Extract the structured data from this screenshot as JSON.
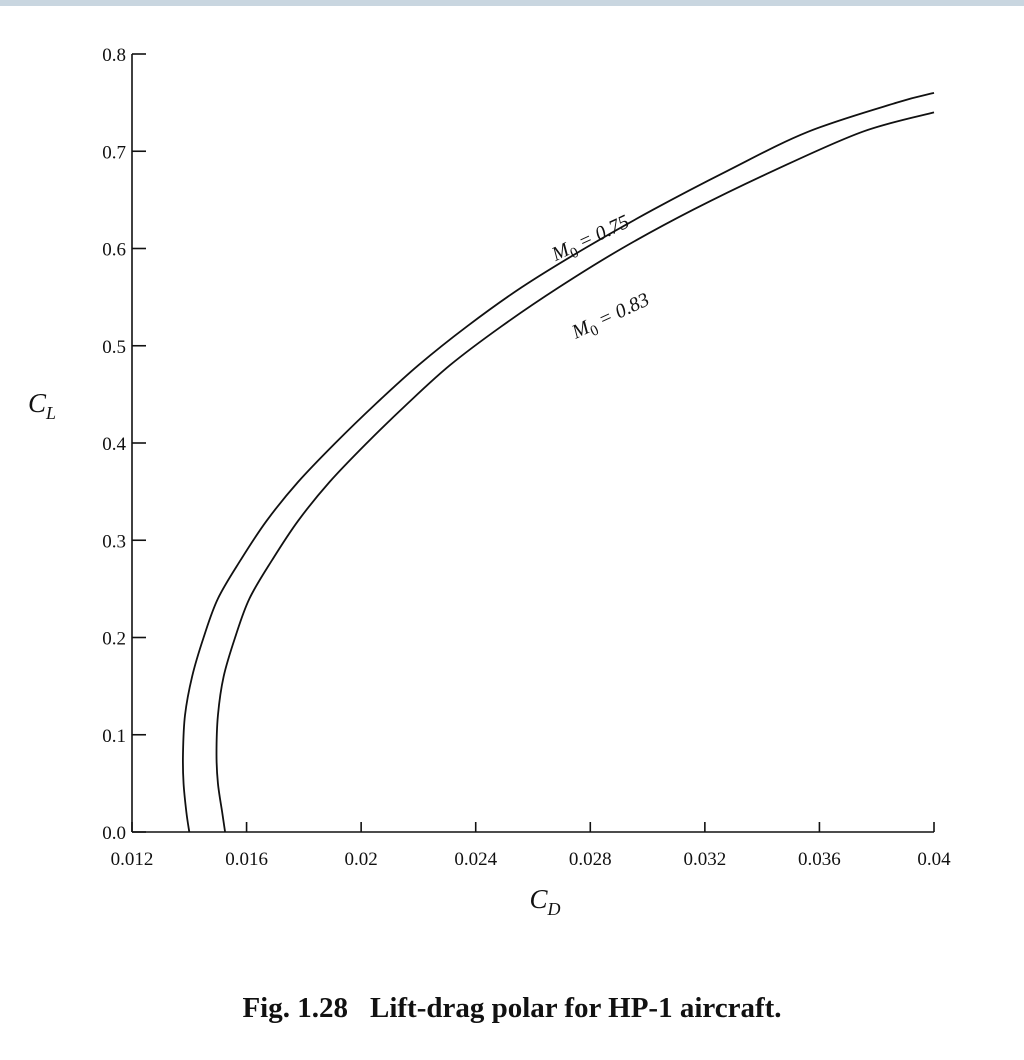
{
  "caption": {
    "figure_number": "Fig. 1.28",
    "text": "Lift-drag polar for HP-1 aircraft."
  },
  "chart_data": {
    "type": "line",
    "xlabel": {
      "main": "C",
      "sub": "D"
    },
    "ylabel": {
      "main": "C",
      "sub": "L"
    },
    "xlim": [
      0.012,
      0.04
    ],
    "ylim": [
      0.0,
      0.8
    ],
    "grid": false,
    "x_ticks": [
      {
        "value": 0.012,
        "label": "0.012"
      },
      {
        "value": 0.016,
        "label": "0.016"
      },
      {
        "value": 0.02,
        "label": "0.02"
      },
      {
        "value": 0.024,
        "label": "0.024"
      },
      {
        "value": 0.028,
        "label": "0.028"
      },
      {
        "value": 0.032,
        "label": "0.032"
      },
      {
        "value": 0.036,
        "label": "0.036"
      },
      {
        "value": 0.04,
        "label": "0.04"
      }
    ],
    "y_ticks": [
      {
        "value": 0.0,
        "label": "0.0"
      },
      {
        "value": 0.1,
        "label": "0.1"
      },
      {
        "value": 0.2,
        "label": "0.2"
      },
      {
        "value": 0.3,
        "label": "0.3"
      },
      {
        "value": 0.4,
        "label": "0.4"
      },
      {
        "value": 0.5,
        "label": "0.5"
      },
      {
        "value": 0.6,
        "label": "0.6"
      },
      {
        "value": 0.7,
        "label": "0.7"
      },
      {
        "value": 0.8,
        "label": "0.8"
      }
    ],
    "series": [
      {
        "name": "M0 = 0.75",
        "label_main": "M",
        "label_sub": "0",
        "label_rest": " = 0.75",
        "label_anchor": {
          "x": 0.0281,
          "y": 0.605
        },
        "label_rotation_deg": -25,
        "points": [
          [
            0.014,
            0.0
          ],
          [
            0.0139,
            0.02
          ],
          [
            0.0138,
            0.05
          ],
          [
            0.01378,
            0.08
          ],
          [
            0.01385,
            0.12
          ],
          [
            0.0141,
            0.16
          ],
          [
            0.0145,
            0.2
          ],
          [
            0.015,
            0.24
          ],
          [
            0.0158,
            0.28
          ],
          [
            0.0167,
            0.32
          ],
          [
            0.0178,
            0.36
          ],
          [
            0.0191,
            0.4
          ],
          [
            0.0205,
            0.44
          ],
          [
            0.022,
            0.48
          ],
          [
            0.0237,
            0.52
          ],
          [
            0.0256,
            0.56
          ],
          [
            0.0278,
            0.6
          ],
          [
            0.0302,
            0.64
          ],
          [
            0.0328,
            0.68
          ],
          [
            0.0356,
            0.72
          ],
          [
            0.0387,
            0.75
          ],
          [
            0.04,
            0.76
          ]
        ]
      },
      {
        "name": "M0 = 0.83",
        "label_main": "M",
        "label_sub": "0",
        "label_rest": " = 0.83",
        "label_anchor": {
          "x": 0.0288,
          "y": 0.525
        },
        "label_rotation_deg": -25,
        "points": [
          [
            0.01525,
            0.0
          ],
          [
            0.01515,
            0.02
          ],
          [
            0.015,
            0.05
          ],
          [
            0.01495,
            0.08
          ],
          [
            0.015,
            0.12
          ],
          [
            0.0152,
            0.16
          ],
          [
            0.0156,
            0.2
          ],
          [
            0.0161,
            0.24
          ],
          [
            0.0169,
            0.28
          ],
          [
            0.0178,
            0.32
          ],
          [
            0.0189,
            0.36
          ],
          [
            0.0202,
            0.4
          ],
          [
            0.0216,
            0.44
          ],
          [
            0.0231,
            0.48
          ],
          [
            0.0249,
            0.52
          ],
          [
            0.0269,
            0.56
          ],
          [
            0.0291,
            0.6
          ],
          [
            0.0316,
            0.64
          ],
          [
            0.0344,
            0.68
          ],
          [
            0.0375,
            0.72
          ],
          [
            0.04,
            0.74
          ]
        ]
      }
    ]
  }
}
